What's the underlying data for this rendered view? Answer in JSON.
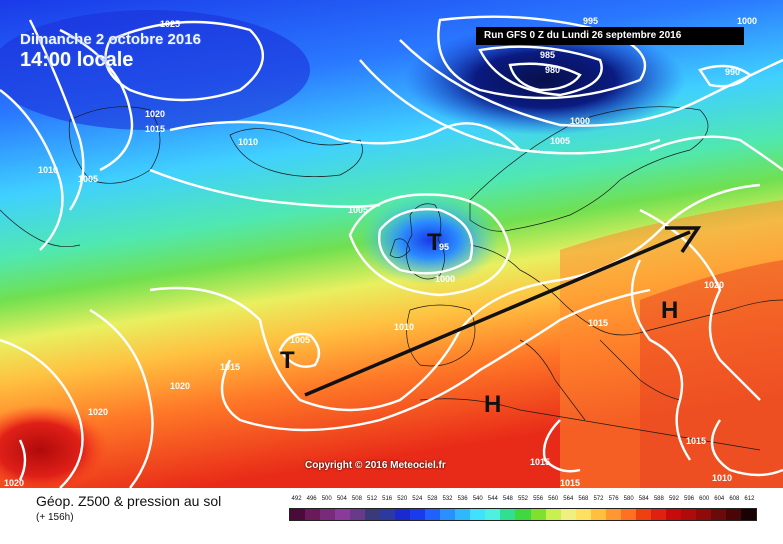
{
  "header": {
    "date": "Dimanche 2 octobre 2016",
    "time": "14:00 locale",
    "run": "Run GFS 0 Z du Lundi 26 septembre 2016"
  },
  "copyright": "Copyright © 2016 Meteociel.fr",
  "legend": {
    "title": "Géop. Z500 & pression au sol",
    "subtitle": "(+ 156h)",
    "scale_values": [
      "492",
      "496",
      "500",
      "504",
      "508",
      "512",
      "516",
      "520",
      "524",
      "528",
      "532",
      "536",
      "540",
      "544",
      "548",
      "552",
      "556",
      "560",
      "564",
      "568",
      "572",
      "576",
      "580",
      "584",
      "588",
      "592",
      "596",
      "600",
      "604",
      "608",
      "612"
    ],
    "scale_colors": [
      "#4a0a3a",
      "#6a1a5a",
      "#7a2a7a",
      "#8a3a9a",
      "#6a3a8a",
      "#3a3a7a",
      "#2a3aa0",
      "#1a2ad0",
      "#1a3aee",
      "#2060ff",
      "#2890ff",
      "#30b8ff",
      "#40e0ff",
      "#50f0e0",
      "#30e090",
      "#40d840",
      "#80e030",
      "#c8f050",
      "#f0f080",
      "#ffe060",
      "#ffc040",
      "#ff9830",
      "#ff7020",
      "#f04010",
      "#e02010",
      "#c80a0a",
      "#b00a0a",
      "#900a0a",
      "#6a0a0a",
      "#4a0606",
      "#1a0202"
    ]
  },
  "isobars": [
    "1025",
    "1020",
    "1015",
    "1010",
    "1005",
    "995",
    "985",
    "980",
    "1000",
    "1005",
    "990",
    "1000",
    "1010",
    "1005",
    "1000",
    "1005",
    "1010",
    "1015",
    "1015",
    "1020",
    "1020",
    "1015",
    "1020",
    "1015",
    "1015",
    "1010",
    "1020",
    "1020",
    "995"
  ],
  "centers": [
    {
      "type": "T",
      "value": "95"
    },
    {
      "type": "T",
      "value": ""
    },
    {
      "type": "H",
      "value": ""
    },
    {
      "type": "H",
      "value": ""
    }
  ],
  "colors": {
    "low_core": "#0a1a6a",
    "blue": "#2a5af0",
    "cyan": "#40d8ff",
    "green": "#50e050",
    "yellow": "#f8f060",
    "orange": "#ff8a30",
    "red": "#e02020"
  }
}
